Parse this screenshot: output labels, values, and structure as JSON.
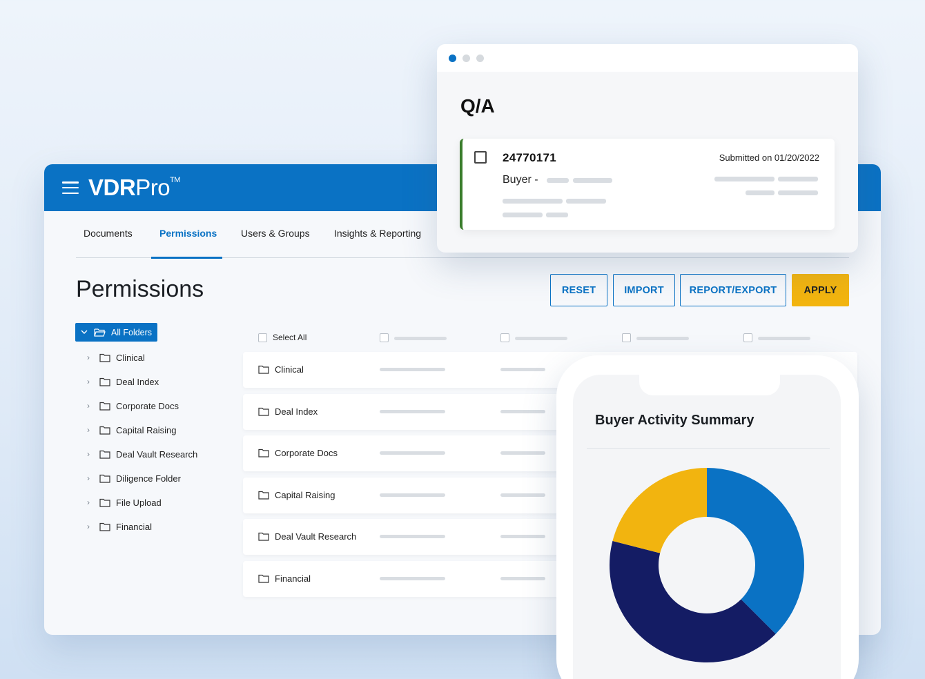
{
  "app": {
    "brand_main": "VDR",
    "brand_rest": "Pro",
    "brand_mark": "TM",
    "tabs": [
      {
        "label": "Documents"
      },
      {
        "label": "Permissions",
        "active": true
      },
      {
        "label": "Users & Groups"
      },
      {
        "label": "Insights & Reporting"
      }
    ],
    "page_title": "Permissions",
    "buttons": {
      "reset": "RESET",
      "import": "IMPORT",
      "report_export": "REPORT/EXPORT",
      "apply": "APPLY"
    },
    "tree": {
      "root": "All Folders",
      "items": [
        "Clinical",
        "Deal Index",
        "Corporate Docs",
        "Capital Raising",
        "Deal Vault Research",
        "Diligence Folder",
        "File Upload",
        "Financial"
      ]
    },
    "grid": {
      "select_all": "Select All",
      "rows": [
        "Clinical",
        "Deal Index",
        "Corporate Docs",
        "Capital Raising",
        "Deal Vault Research",
        "Financial"
      ]
    }
  },
  "qa": {
    "title": "Q/A",
    "item": {
      "id": "24770171",
      "submitted": "Submitted on 01/20/2022",
      "buyer_label": "Buyer -"
    }
  },
  "phone": {
    "title": "Buyer Activity Summary"
  },
  "colors": {
    "brand_blue": "#0a72c4",
    "apply_yellow": "#f2b40f",
    "navy": "#141c64",
    "qa_accent_green": "#3a7d2c"
  },
  "chart_data": {
    "type": "pie",
    "variant": "donut",
    "values": [
      37.5,
      41.5,
      21
    ],
    "colors": [
      "#0a72c4",
      "#141c64",
      "#f2b40f"
    ]
  }
}
